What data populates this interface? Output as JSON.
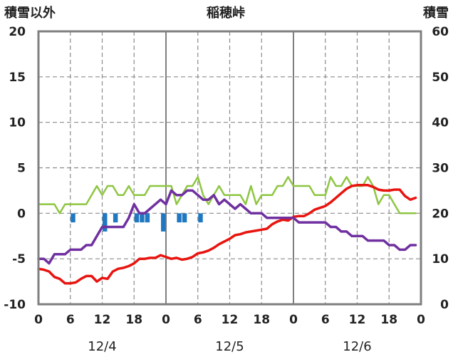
{
  "chart_data": {
    "type": "line",
    "title": "稲穂峠",
    "left_axis_label": "積雪以外",
    "right_axis_label": "積雪",
    "left_axis": {
      "min": -10,
      "max": 20,
      "ticks": [
        "20",
        "15",
        "10",
        "5",
        "0",
        "-5",
        "-10"
      ]
    },
    "right_axis": {
      "min": 0,
      "max": 60,
      "ticks": [
        "60",
        "50",
        "40",
        "30",
        "20",
        "10",
        "0"
      ]
    },
    "x_axis": {
      "min": 0,
      "max": 72,
      "tick_labels": [
        "0",
        "6",
        "12",
        "18",
        "0",
        "6",
        "12",
        "18",
        "0",
        "6",
        "12",
        "18",
        "0"
      ],
      "date_labels": [
        "12/4",
        "12/5",
        "12/6"
      ]
    },
    "grid": true,
    "series": [
      {
        "color": "#e8140f",
        "axis": "left",
        "x": [
          0,
          1,
          2,
          3,
          4,
          5,
          6,
          7,
          8,
          9,
          10,
          11,
          12,
          13,
          14,
          15,
          16,
          17,
          18,
          19,
          20,
          21,
          22,
          23,
          24,
          25,
          26,
          27,
          28,
          29,
          30,
          31,
          32,
          33,
          34,
          35,
          36,
          37,
          38,
          39,
          40,
          41,
          42,
          43,
          44,
          45,
          46,
          47,
          48,
          49,
          50,
          51,
          52,
          53,
          54,
          55,
          56,
          57,
          58,
          59,
          60,
          61,
          62,
          63,
          64,
          65,
          66,
          67,
          68,
          69,
          70,
          71
        ],
        "values": [
          -6.1,
          -6.2,
          -6.4,
          -7.0,
          -7.2,
          -7.7,
          -7.7,
          -7.6,
          -7.2,
          -6.9,
          -6.9,
          -7.5,
          -7.1,
          -7.2,
          -6.4,
          -6.1,
          -6.0,
          -5.8,
          -5.5,
          -5.0,
          -5.0,
          -4.9,
          -4.9,
          -4.6,
          -4.8,
          -5.0,
          -4.9,
          -5.1,
          -5.0,
          -4.8,
          -4.4,
          -4.3,
          -4.1,
          -3.8,
          -3.4,
          -3.1,
          -2.8,
          -2.4,
          -2.3,
          -2.1,
          -2.0,
          -1.9,
          -1.8,
          -1.7,
          -1.2,
          -0.9,
          -0.7,
          -0.8,
          -0.4,
          -0.3,
          -0.3,
          0.0,
          0.4,
          0.6,
          0.8,
          1.2,
          1.7,
          2.2,
          2.7,
          3.0,
          3.1,
          3.1,
          3.1,
          2.9,
          2.6,
          2.5,
          2.5,
          2.6,
          2.6,
          1.9,
          1.5,
          1.7
        ]
      },
      {
        "color": "#8ec641",
        "axis": "left",
        "x": [
          0,
          1,
          2,
          3,
          4,
          5,
          6,
          7,
          8,
          9,
          10,
          11,
          12,
          13,
          14,
          15,
          16,
          17,
          18,
          19,
          20,
          21,
          22,
          23,
          24,
          25,
          26,
          27,
          28,
          29,
          30,
          31,
          32,
          33,
          34,
          35,
          36,
          37,
          38,
          39,
          40,
          41,
          42,
          43,
          44,
          45,
          46,
          47,
          48,
          49,
          50,
          51,
          52,
          53,
          54,
          55,
          56,
          57,
          58,
          59,
          60,
          61,
          62,
          63,
          64,
          65,
          66,
          67,
          68,
          69,
          70,
          71
        ],
        "values": [
          1.0,
          1.0,
          1.0,
          1.0,
          0.0,
          1.0,
          1.0,
          1.0,
          1.0,
          1.0,
          2.0,
          3.0,
          2.0,
          3.0,
          3.0,
          2.0,
          2.0,
          3.0,
          2.0,
          2.0,
          2.0,
          3.0,
          3.0,
          3.0,
          3.0,
          3.0,
          1.0,
          2.0,
          3.0,
          3.0,
          4.0,
          2.0,
          1.0,
          2.0,
          3.0,
          2.0,
          2.0,
          2.0,
          2.0,
          1.0,
          3.0,
          1.0,
          2.0,
          2.0,
          2.0,
          3.0,
          3.0,
          4.0,
          3.0,
          3.0,
          3.0,
          3.0,
          2.0,
          2.0,
          2.0,
          4.0,
          3.0,
          3.0,
          4.0,
          3.0,
          3.0,
          3.0,
          4.0,
          3.0,
          1.0,
          2.0,
          2.0,
          1.0,
          0.0,
          0.0,
          0.0,
          0.0
        ]
      },
      {
        "color": "#7030a0",
        "axis": "left",
        "x": [
          0,
          1,
          2,
          3,
          4,
          5,
          6,
          7,
          8,
          9,
          10,
          11,
          12,
          13,
          14,
          15,
          16,
          17,
          18,
          19,
          20,
          21,
          22,
          23,
          24,
          25,
          26,
          27,
          28,
          29,
          30,
          31,
          32,
          33,
          34,
          35,
          36,
          37,
          38,
          39,
          40,
          41,
          42,
          43,
          44,
          45,
          46,
          47,
          48,
          49,
          50,
          51,
          52,
          53,
          54,
          55,
          56,
          57,
          58,
          59,
          60,
          61,
          62,
          63,
          64,
          65,
          66,
          67,
          68,
          69,
          70,
          71
        ],
        "values": [
          -5.0,
          -5.0,
          -5.5,
          -4.5,
          -4.5,
          -4.5,
          -4.0,
          -4.0,
          -4.0,
          -3.5,
          -3.5,
          -2.5,
          -1.5,
          -1.5,
          -1.5,
          -1.5,
          -1.5,
          -0.5,
          1.0,
          0.0,
          0.0,
          0.5,
          1.0,
          1.5,
          1.0,
          2.5,
          2.0,
          2.0,
          2.5,
          2.5,
          2.0,
          1.5,
          1.5,
          2.0,
          1.0,
          1.5,
          1.0,
          0.5,
          1.0,
          0.5,
          0.0,
          0.0,
          0.0,
          -0.5,
          -0.5,
          -0.5,
          -0.5,
          -0.5,
          -0.5,
          -1.0,
          -1.0,
          -1.0,
          -1.0,
          -1.0,
          -1.0,
          -1.5,
          -1.5,
          -2.0,
          -2.0,
          -2.5,
          -2.5,
          -2.5,
          -3.0,
          -3.0,
          -3.0,
          -3.0,
          -3.5,
          -3.5,
          -4.0,
          -4.0,
          -3.5,
          -3.5
        ]
      },
      {
        "type": "bar",
        "color": "#1f78c1",
        "axis": "left",
        "x": [
          6,
          12,
          14,
          18,
          19,
          20,
          23,
          26,
          27,
          30
        ],
        "values": [
          -1.0,
          -2.0,
          -1.0,
          -1.0,
          -1.0,
          -1.0,
          -2.0,
          -1.0,
          -1.0,
          -1.0
        ]
      }
    ]
  }
}
